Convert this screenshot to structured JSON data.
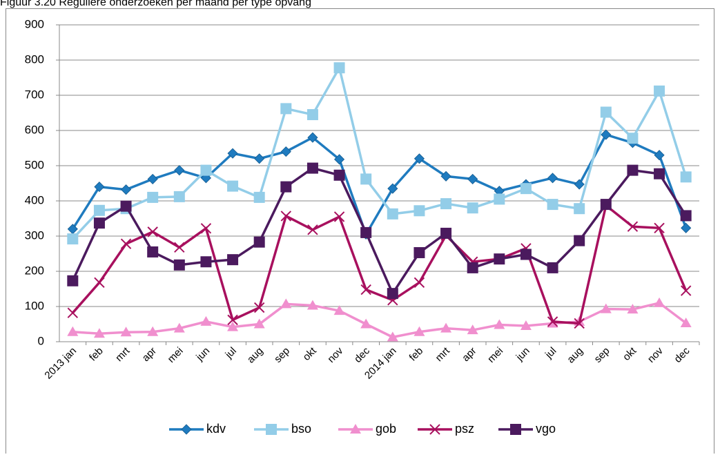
{
  "chart_data": {
    "type": "line",
    "title": "Figuur 3.20 Reguliere onderzoeken per maand per type opvang",
    "categories": [
      "2013 jan",
      "feb",
      "mrt",
      "apr",
      "mei",
      "jun",
      "jul",
      "aug",
      "sep",
      "okt",
      "nov",
      "dec",
      "2014 jan",
      "feb",
      "mrt",
      "apr",
      "mei",
      "jun",
      "jul",
      "aug",
      "sep",
      "okt",
      "nov",
      "dec"
    ],
    "series": [
      {
        "name": "kdv",
        "color": "#1f7bbf",
        "marker": "diamond",
        "values": [
          320,
          440,
          432,
          462,
          487,
          465,
          535,
          520,
          540,
          580,
          518,
          305,
          435,
          520,
          470,
          462,
          428,
          447,
          465,
          447,
          588,
          565,
          530,
          323
        ]
      },
      {
        "name": "bso",
        "color": "#93cde8",
        "marker": "square",
        "values": [
          292,
          373,
          378,
          410,
          412,
          487,
          442,
          410,
          662,
          645,
          778,
          462,
          363,
          372,
          392,
          380,
          405,
          435,
          390,
          378,
          652,
          578,
          712,
          468
        ]
      },
      {
        "name": "gob",
        "color": "#f08fce",
        "marker": "triangle",
        "values": [
          28,
          23,
          27,
          28,
          38,
          57,
          42,
          50,
          107,
          103,
          88,
          50,
          13,
          28,
          38,
          33,
          48,
          45,
          52,
          57,
          93,
          92,
          110,
          53
        ]
      },
      {
        "name": "psz",
        "color": "#a8105e",
        "marker": "x",
        "values": [
          82,
          168,
          278,
          312,
          268,
          322,
          62,
          97,
          357,
          318,
          355,
          148,
          118,
          168,
          302,
          227,
          235,
          265,
          57,
          52,
          387,
          327,
          323,
          145
        ]
      },
      {
        "name": "vgo",
        "color": "#4b1a5e",
        "marker": "square",
        "values": [
          173,
          337,
          385,
          255,
          218,
          227,
          233,
          283,
          440,
          493,
          473,
          310,
          137,
          253,
          308,
          210,
          235,
          248,
          210,
          287,
          390,
          487,
          477,
          358
        ]
      }
    ],
    "ylim": [
      0,
      900
    ],
    "yticks": [
      0,
      100,
      200,
      300,
      400,
      500,
      600,
      700,
      800,
      900
    ],
    "grid": true,
    "legend": "bottom"
  }
}
